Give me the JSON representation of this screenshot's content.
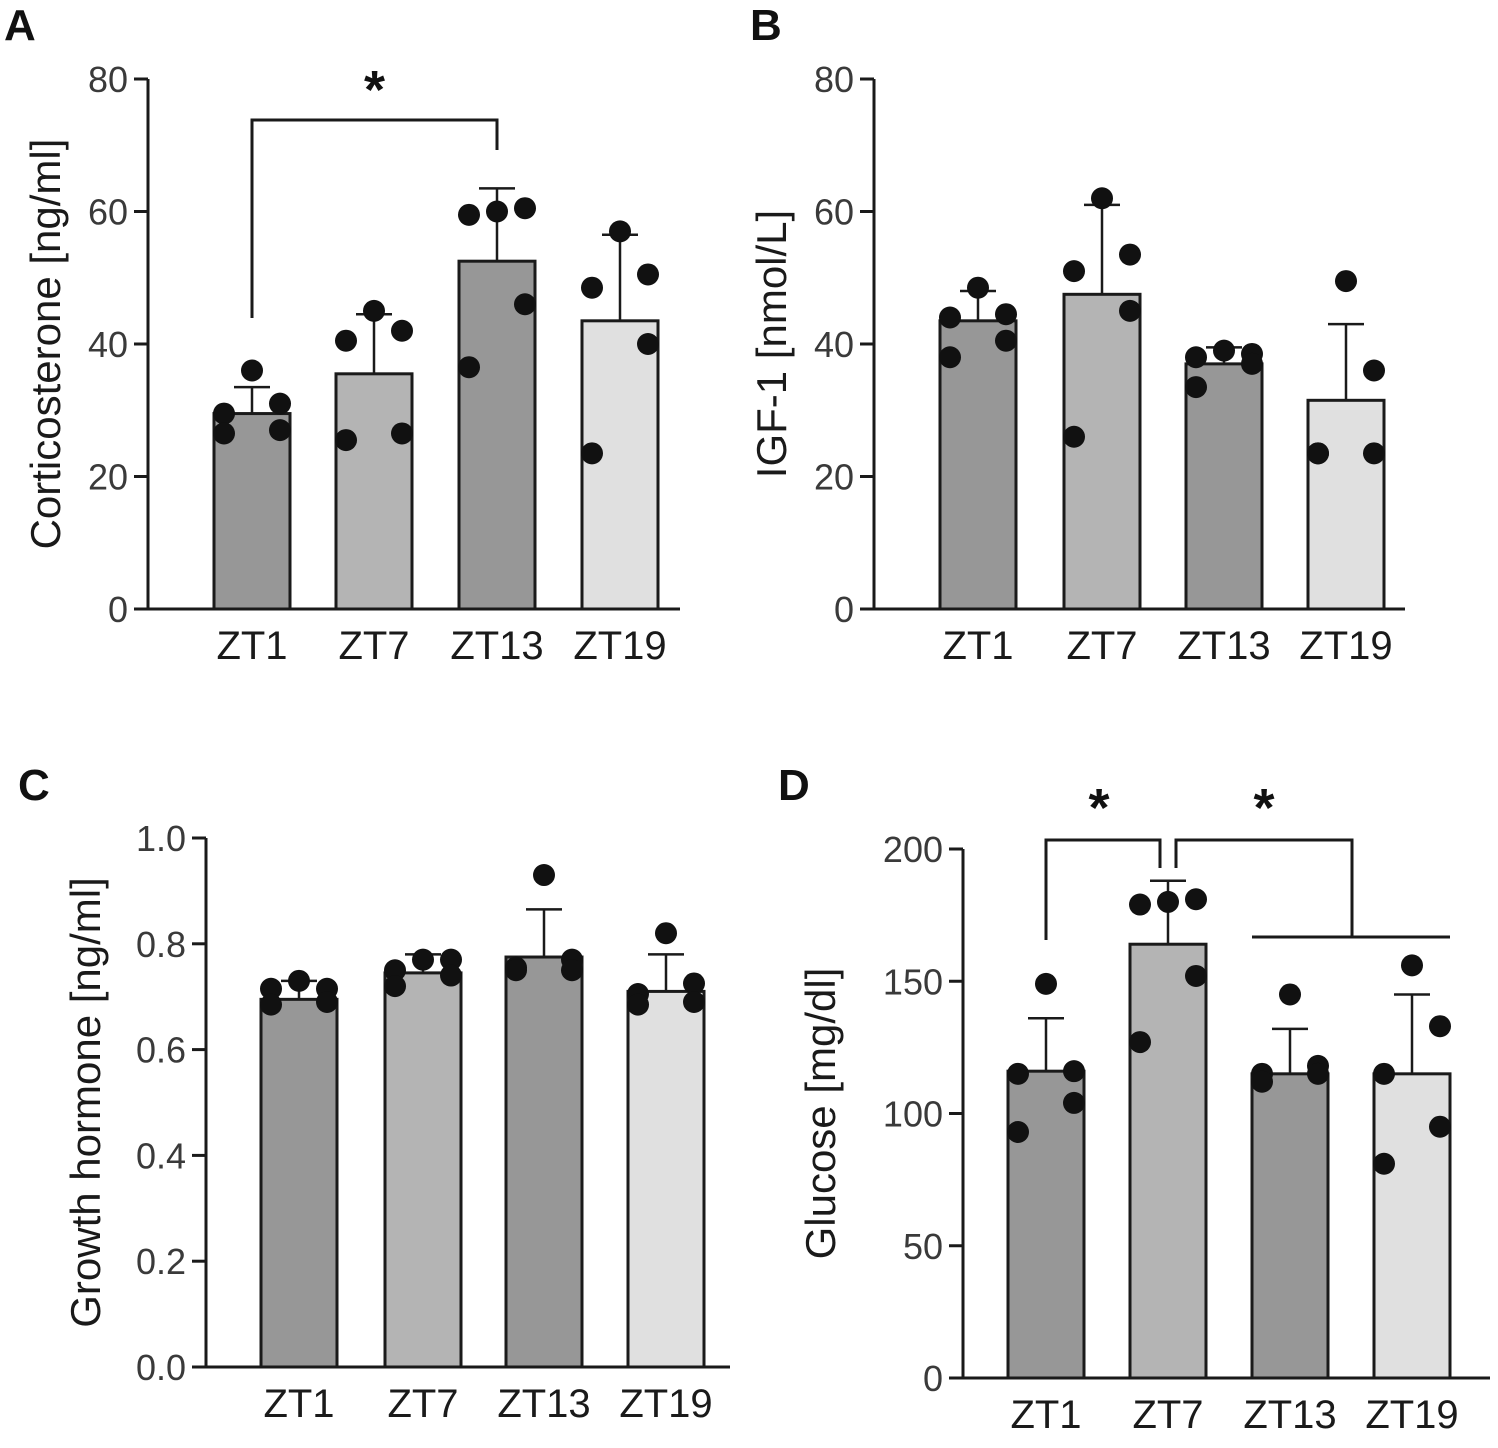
{
  "chart_data": [
    {
      "panel": "A",
      "type": "bar",
      "categories": [
        "ZT1",
        "ZT7",
        "ZT13",
        "ZT19"
      ],
      "ylabel": "Corticosterone [ng/ml]",
      "ylim": [
        0,
        80
      ],
      "yticks": [
        0,
        20,
        40,
        60,
        80
      ],
      "ytick_labels": [
        "0",
        "20",
        "40",
        "60",
        "80"
      ],
      "means": [
        29.5,
        35.5,
        52.5,
        43.5
      ],
      "sd_upper": [
        33.5,
        44.5,
        63.5,
        56.5
      ],
      "points": [
        [
          36,
          31,
          29.5,
          27,
          26.5
        ],
        [
          45,
          42,
          40.5,
          26.5,
          25.5
        ],
        [
          60,
          60.5,
          59.5,
          46,
          36.5
        ],
        [
          57,
          50.5,
          48.5,
          40,
          23.5
        ]
      ],
      "bar_colors": [
        "#979797",
        "#b4b4b4",
        "#979797",
        "#e0e0e0"
      ],
      "significance": [
        {
          "from": "ZT1",
          "to": "ZT13",
          "label": "*"
        }
      ]
    },
    {
      "panel": "B",
      "type": "bar",
      "categories": [
        "ZT1",
        "ZT7",
        "ZT13",
        "ZT19"
      ],
      "ylabel": "IGF-1 [nmol/L]",
      "ylim": [
        0,
        80
      ],
      "yticks": [
        0,
        20,
        40,
        60,
        80
      ],
      "ytick_labels": [
        "0",
        "20",
        "40",
        "60",
        "80"
      ],
      "means": [
        43.5,
        47.5,
        37,
        31.5
      ],
      "sd_upper": [
        48,
        61,
        39.5,
        43
      ],
      "points": [
        [
          48.5,
          44.5,
          44,
          40.5,
          38
        ],
        [
          62,
          53.5,
          51,
          45,
          26
        ],
        [
          39,
          38.5,
          38,
          37,
          33.5
        ],
        [
          49.5,
          36,
          23.5,
          23.5,
          23.5
        ]
      ],
      "bar_colors": [
        "#979797",
        "#b4b4b4",
        "#979797",
        "#e0e0e0"
      ],
      "significance": []
    },
    {
      "panel": "C",
      "type": "bar",
      "categories": [
        "ZT1",
        "ZT7",
        "ZT13",
        "ZT19"
      ],
      "ylabel": "Growth hormone [ng/ml]",
      "ylim": [
        0,
        1.0
      ],
      "yticks": [
        0,
        0.2,
        0.4,
        0.6,
        0.8,
        1.0
      ],
      "ytick_labels": [
        "0.0",
        "0.2",
        "0.4",
        "0.6",
        "0.8",
        "1.0"
      ],
      "means": [
        0.695,
        0.745,
        0.775,
        0.71
      ],
      "sd_upper": [
        0.73,
        0.78,
        0.865,
        0.78
      ],
      "points": [
        [
          0.73,
          0.715,
          0.715,
          0.69,
          0.685
        ],
        [
          0.77,
          0.77,
          0.75,
          0.74,
          0.72
        ],
        [
          0.93,
          0.77,
          0.755,
          0.75,
          0.75
        ],
        [
          0.82,
          0.725,
          0.705,
          0.69,
          0.685
        ]
      ],
      "bar_colors": [
        "#979797",
        "#b4b4b4",
        "#979797",
        "#e0e0e0"
      ],
      "significance": []
    },
    {
      "panel": "D",
      "type": "bar",
      "categories": [
        "ZT1",
        "ZT7",
        "ZT13",
        "ZT19"
      ],
      "ylabel": "Glucose [mg/dl]",
      "ylim": [
        0,
        200
      ],
      "yticks": [
        0,
        50,
        100,
        150,
        200
      ],
      "ytick_labels": [
        "0",
        "50",
        "100",
        "150",
        "200"
      ],
      "means": [
        116,
        164,
        115,
        115
      ],
      "sd_upper": [
        136,
        188,
        132,
        145
      ],
      "points": [
        [
          149,
          116,
          115,
          104,
          93
        ],
        [
          180,
          181,
          179,
          152,
          127
        ],
        [
          145,
          118,
          115,
          115,
          112
        ],
        [
          156,
          133,
          115,
          95,
          81
        ]
      ],
      "bar_colors": [
        "#979797",
        "#b4b4b4",
        "#979797",
        "#e0e0e0"
      ],
      "significance": [
        {
          "from": "ZT1",
          "to": "ZT7",
          "label": "*"
        },
        {
          "from": "ZT7",
          "to": "ZT13-ZT19",
          "label": "*"
        }
      ]
    }
  ]
}
